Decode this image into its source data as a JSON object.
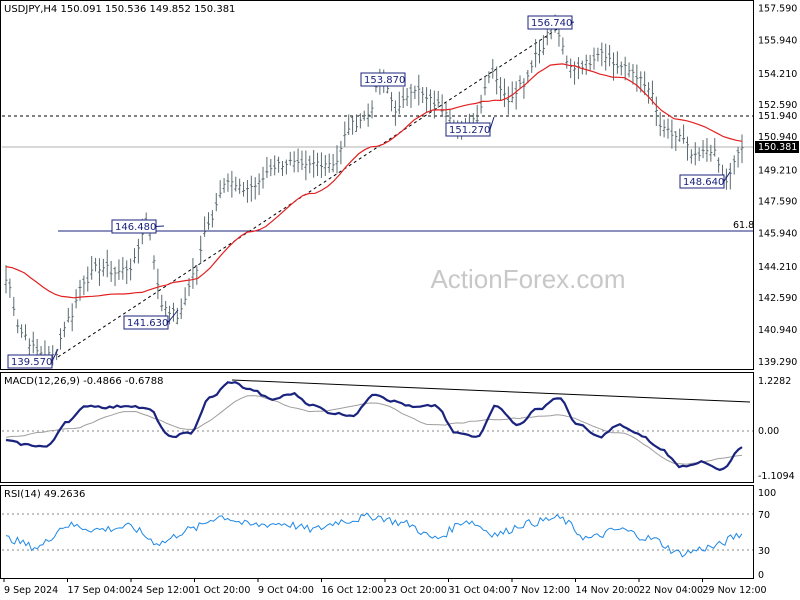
{
  "main_panel": {
    "header": "USDJPY,H4  150.091 150.536 149.852 150.381",
    "y_ticks": [
      "157.590",
      "155.940",
      "154.210",
      "152.590",
      "150.940",
      "149.210",
      "147.590",
      "145.940",
      "144.210",
      "142.590",
      "140.940",
      "139.290"
    ],
    "y_tick_values": [
      157.59,
      155.94,
      154.21,
      152.59,
      150.94,
      149.21,
      147.59,
      145.94,
      144.21,
      142.59,
      140.94,
      139.29
    ],
    "current_price_label": "150.381",
    "resistance_label": "151.940",
    "fib_label": "61.8",
    "watermark": "ActionForex.com",
    "callouts": [
      "139.570",
      "146.480",
      "141.630",
      "153.870",
      "151.270",
      "156.740",
      "148.640"
    ]
  },
  "macd_panel": {
    "header": "MACD(12,26,9) -0.4866 -0.6788",
    "y_ticks": [
      "1.2282",
      "0.00",
      "-1.1094"
    ]
  },
  "rsi_panel": {
    "header": "RSI(14) 49.2636",
    "y_ticks": [
      "100",
      "70",
      "30",
      "0"
    ]
  },
  "x_axis": {
    "ticks": [
      "9 Sep 2024",
      "17 Sep 04:00",
      "24 Sep 12:00",
      "1 Oct 20:00",
      "9 Oct 04:00",
      "16 Oct 12:00",
      "23 Oct 20:00",
      "31 Oct 04:00",
      "7 Nov 12:00",
      "14 Nov 20:00",
      "22 Nov 04:00",
      "29 Nov 12:00"
    ]
  },
  "colors": {
    "price_bar": "#5a6b70",
    "moving_average": "#e32020",
    "macd_line": "#1a237e",
    "signal_line": "#9e9e9e",
    "callout_box": "#1a237e",
    "grid": "#000000"
  },
  "chart_data": [
    {
      "type": "line",
      "title": "USDJPY,H4",
      "series": [
        {
          "values": [
            {
              "x": "9 Sep 2024",
              "y": 143.5
            },
            {
              "x": "11 Sep",
              "y": 140.8
            },
            {
              "x": "13 Sep",
              "y": 139.8
            },
            {
              "x": "16 Sep",
              "y": 139.57
            },
            {
              "x": "17 Sep 04:00",
              "y": 141.5
            },
            {
              "x": "19 Sep",
              "y": 143.5
            },
            {
              "x": "21 Sep",
              "y": 144.2
            },
            {
              "x": "23 Sep",
              "y": 143.9
            },
            {
              "x": "24 Sep 12:00",
              "y": 144.2
            },
            {
              "x": "26 Sep",
              "y": 146.48
            },
            {
              "x": "27 Sep",
              "y": 142.2
            },
            {
              "x": "30 Sep",
              "y": 141.63
            },
            {
              "x": "1 Oct 20:00",
              "y": 143.8
            },
            {
              "x": "3 Oct",
              "y": 146.6
            },
            {
              "x": "5 Oct",
              "y": 148.7
            },
            {
              "x": "7 Oct",
              "y": 148.2
            },
            {
              "x": "9 Oct 04:00",
              "y": 148.4
            },
            {
              "x": "11 Oct",
              "y": 149.4
            },
            {
              "x": "13 Oct",
              "y": 149.6
            },
            {
              "x": "15 Oct",
              "y": 149.3
            },
            {
              "x": "16 Oct 12:00",
              "y": 149.6
            },
            {
              "x": "18 Oct",
              "y": 149.6
            },
            {
              "x": "21 Oct",
              "y": 151.5
            },
            {
              "x": "22 Oct",
              "y": 152.0
            },
            {
              "x": "23 Oct 20:00",
              "y": 153.87
            },
            {
              "x": "25 Oct",
              "y": 152.3
            },
            {
              "x": "28 Oct",
              "y": 153.5
            },
            {
              "x": "30 Oct",
              "y": 152.8
            },
            {
              "x": "31 Oct 04:00",
              "y": 152.4
            },
            {
              "x": "1 Nov",
              "y": 151.27
            },
            {
              "x": "5 Nov",
              "y": 151.9
            },
            {
              "x": "6 Nov",
              "y": 154.4
            },
            {
              "x": "7 Nov 12:00",
              "y": 152.9
            },
            {
              "x": "11 Nov",
              "y": 153.7
            },
            {
              "x": "13 Nov",
              "y": 155.4
            },
            {
              "x": "14 Nov",
              "y": 156.74
            },
            {
              "x": "14 Nov 20:00",
              "y": 154.5
            },
            {
              "x": "16 Nov",
              "y": 154.7
            },
            {
              "x": "18 Nov",
              "y": 155.4
            },
            {
              "x": "20 Nov",
              "y": 154.6
            },
            {
              "x": "22 Nov 04:00",
              "y": 154.3
            },
            {
              "x": "24 Nov",
              "y": 153.4
            },
            {
              "x": "26 Nov",
              "y": 151.2
            },
            {
              "x": "27 Nov",
              "y": 150.9
            },
            {
              "x": "28 Nov",
              "y": 149.8
            },
            {
              "x": "29 Nov",
              "y": 150.3
            },
            {
              "x": "29 Nov 12:00",
              "y": 148.64
            },
            {
              "x": "2 Dec",
              "y": 150.381
            }
          ]
        },
        {
          "values": [
            {
              "x": "9 Sep 2024",
              "y": 144.2
            },
            {
              "x": "17 Sep 04:00",
              "y": 142.6
            },
            {
              "x": "24 Sep 12:00",
              "y": 142.8
            },
            {
              "x": "1 Oct 20:00",
              "y": 143.5
            },
            {
              "x": "9 Oct 04:00",
              "y": 146.0
            },
            {
              "x": "16 Oct 12:00",
              "y": 148.0
            },
            {
              "x": "23 Oct 20:00",
              "y": 150.4
            },
            {
              "x": "31 Oct 04:00",
              "y": 152.3
            },
            {
              "x": "7 Nov 12:00",
              "y": 152.8
            },
            {
              "x": "14 Nov 20:00",
              "y": 154.7
            },
            {
              "x": "22 Nov 04:00",
              "y": 154.0
            },
            {
              "x": "29 Nov 12:00",
              "y": 151.8
            },
            {
              "x": "2 Dec",
              "y": 150.7
            }
          ]
        }
      ],
      "levels": [
        151.94,
        150.381,
        145.94
      ],
      "ylim": [
        139.0,
        157.8
      ]
    },
    {
      "type": "line",
      "title": "MACD(12,26,9)",
      "series": [
        {
          "values": [
            {
              "x": "9 Sep 2024",
              "y": -0.3
            },
            {
              "x": "13 Sep",
              "y": -0.4
            },
            {
              "x": "16 Sep",
              "y": -0.45
            },
            {
              "x": "17 Sep 04:00",
              "y": 0.2
            },
            {
              "x": "19 Sep",
              "y": 0.6
            },
            {
              "x": "21 Sep",
              "y": 0.55
            },
            {
              "x": "24 Sep 12:00",
              "y": 0.6
            },
            {
              "x": "27 Sep",
              "y": 0.5
            },
            {
              "x": "30 Sep",
              "y": -0.2
            },
            {
              "x": "1 Oct 20:00",
              "y": -0.1
            },
            {
              "x": "3 Oct",
              "y": 0.8
            },
            {
              "x": "5 Oct",
              "y": 1.2
            },
            {
              "x": "7 Oct",
              "y": 1.0
            },
            {
              "x": "9 Oct 04:00",
              "y": 0.75
            },
            {
              "x": "11 Oct",
              "y": 0.9
            },
            {
              "x": "13 Oct",
              "y": 0.6
            },
            {
              "x": "16 Oct 12:00",
              "y": 0.4
            },
            {
              "x": "18 Oct",
              "y": 0.35
            },
            {
              "x": "21 Oct",
              "y": 0.9
            },
            {
              "x": "23 Oct 20:00",
              "y": 0.7
            },
            {
              "x": "25 Oct",
              "y": 0.55
            },
            {
              "x": "28 Oct",
              "y": 0.6
            },
            {
              "x": "31 Oct 04:00",
              "y": -0.1
            },
            {
              "x": "1 Nov",
              "y": -0.2
            },
            {
              "x": "5 Nov",
              "y": 0.6
            },
            {
              "x": "7 Nov 12:00",
              "y": 0.1
            },
            {
              "x": "11 Nov",
              "y": 0.5
            },
            {
              "x": "14 Nov",
              "y": 0.8
            },
            {
              "x": "14 Nov 20:00",
              "y": 0.1
            },
            {
              "x": "16 Nov",
              "y": -0.2
            },
            {
              "x": "18 Nov",
              "y": 0.1
            },
            {
              "x": "22 Nov 04:00",
              "y": -0.15
            },
            {
              "x": "26 Nov",
              "y": -0.5
            },
            {
              "x": "27 Nov",
              "y": -0.95
            },
            {
              "x": "28 Nov",
              "y": -0.85
            },
            {
              "x": "29 Nov 12:00",
              "y": -1.05
            },
            {
              "x": "2 Dec",
              "y": -0.49
            }
          ]
        },
        {
          "values": [
            {
              "x": "9 Sep 2024",
              "y": -0.2
            },
            {
              "x": "17 Sep 04:00",
              "y": 0.0
            },
            {
              "x": "24 Sep 12:00",
              "y": 0.45
            },
            {
              "x": "1 Oct 20:00",
              "y": 0.0
            },
            {
              "x": "9 Oct 04:00",
              "y": 0.85
            },
            {
              "x": "16 Oct 12:00",
              "y": 0.45
            },
            {
              "x": "23 Oct 20:00",
              "y": 0.65
            },
            {
              "x": "31 Oct 04:00",
              "y": 0.1
            },
            {
              "x": "7 Nov 12:00",
              "y": 0.25
            },
            {
              "x": "14 Nov 20:00",
              "y": 0.35
            },
            {
              "x": "22 Nov 04:00",
              "y": -0.1
            },
            {
              "x": "29 Nov 12:00",
              "y": -0.9
            },
            {
              "x": "2 Dec",
              "y": -0.68
            }
          ]
        }
      ],
      "ylim": [
        -1.3,
        1.3
      ]
    },
    {
      "type": "line",
      "title": "RSI(14)",
      "series": [
        {
          "values": [
            {
              "x": "9 Sep 2024",
              "y": 45
            },
            {
              "x": "13 Sep",
              "y": 35
            },
            {
              "x": "17 Sep 04:00",
              "y": 60
            },
            {
              "x": "21 Sep",
              "y": 55
            },
            {
              "x": "24 Sep 12:00",
              "y": 58
            },
            {
              "x": "27 Sep",
              "y": 40
            },
            {
              "x": "1 Oct 20:00",
              "y": 55
            },
            {
              "x": "5 Oct",
              "y": 70
            },
            {
              "x": "9 Oct 04:00",
              "y": 60
            },
            {
              "x": "13 Oct",
              "y": 62
            },
            {
              "x": "16 Oct 12:00",
              "y": 55
            },
            {
              "x": "21 Oct",
              "y": 65
            },
            {
              "x": "23 Oct 20:00",
              "y": 70
            },
            {
              "x": "28 Oct",
              "y": 62
            },
            {
              "x": "31 Oct 04:00",
              "y": 45
            },
            {
              "x": "5 Nov",
              "y": 65
            },
            {
              "x": "7 Nov 12:00",
              "y": 50
            },
            {
              "x": "11 Nov",
              "y": 62
            },
            {
              "x": "14 Nov",
              "y": 68
            },
            {
              "x": "14 Nov 20:00",
              "y": 45
            },
            {
              "x": "18 Nov",
              "y": 55
            },
            {
              "x": "22 Nov 04:00",
              "y": 45
            },
            {
              "x": "27 Nov",
              "y": 28
            },
            {
              "x": "29 Nov 12:00",
              "y": 35
            },
            {
              "x": "2 Dec",
              "y": 49.26
            }
          ]
        }
      ],
      "ylim": [
        0,
        100
      ]
    }
  ]
}
